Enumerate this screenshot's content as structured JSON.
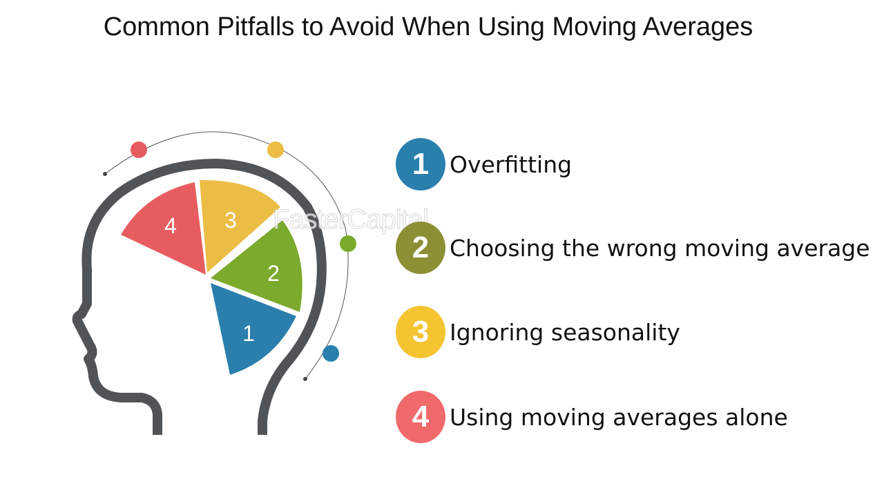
{
  "title": "Common Pitfalls to Avoid When Using Moving Averages",
  "watermark": "FasterCapital",
  "colors": {
    "blue": "#2a7fad",
    "green": "#7caa2c",
    "yellow": "#ecbd45",
    "red": "#e75d5f",
    "olive": "#8c8f34",
    "outline": "#515456"
  },
  "segments": [
    {
      "number": "1",
      "color": "#2a7fad"
    },
    {
      "number": "2",
      "color": "#7caa2c"
    },
    {
      "number": "3",
      "color": "#ecbd45"
    },
    {
      "number": "4",
      "color": "#e75d5f"
    }
  ],
  "items": [
    {
      "number": "1",
      "label": "Overfitting",
      "color": "#2a7fad"
    },
    {
      "number": "2",
      "label": "Choosing the wrong moving average",
      "color": "#8c8f34"
    },
    {
      "number": "3",
      "label": "Ignoring seasonality",
      "color": "#f4c431"
    },
    {
      "number": "4",
      "label": "Using moving averages alone",
      "color": "#f06a6c"
    }
  ]
}
